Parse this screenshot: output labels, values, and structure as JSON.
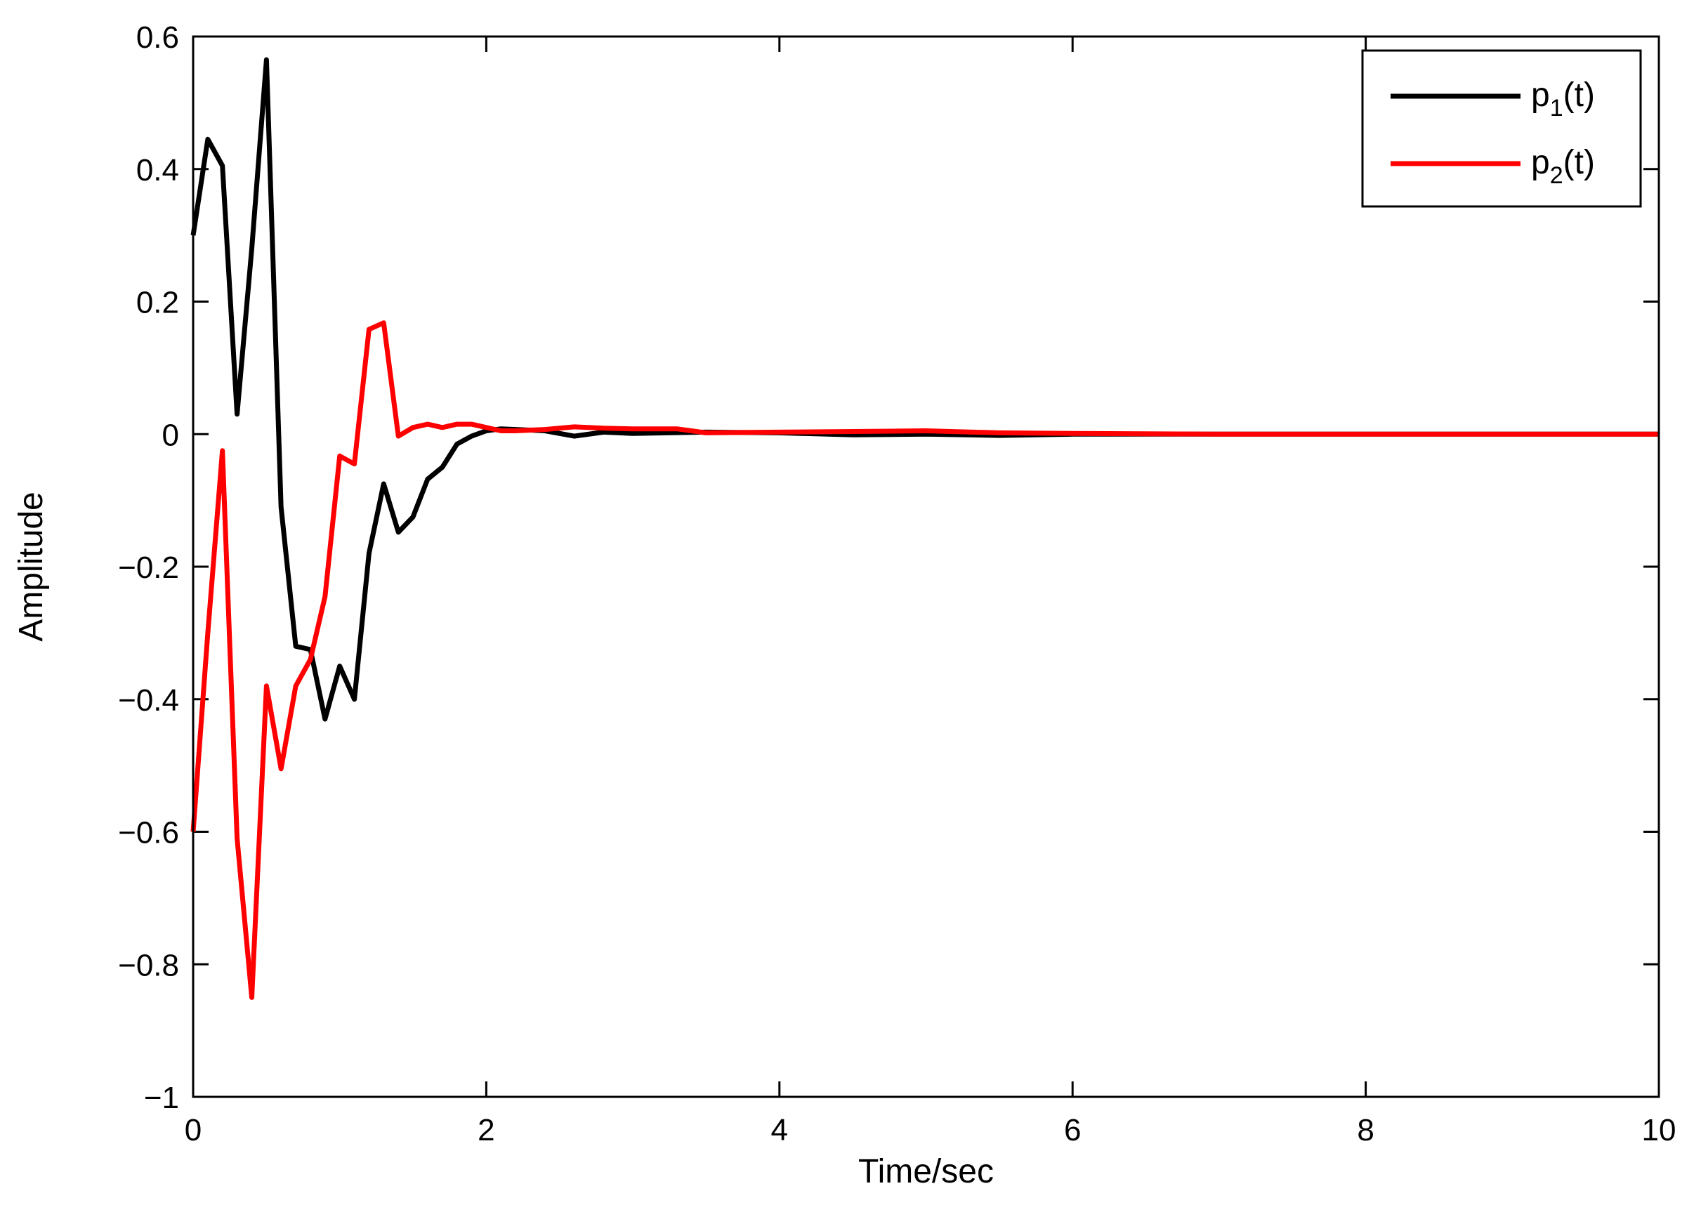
{
  "chart_data": {
    "type": "line",
    "xlabel": "Time/sec",
    "ylabel": "Amplitude",
    "xlim": [
      0,
      10
    ],
    "ylim": [
      -1,
      0.6
    ],
    "xticks": [
      0,
      2,
      4,
      6,
      8,
      10
    ],
    "yticks": [
      -1,
      -0.8,
      -0.6,
      -0.4,
      -0.2,
      0,
      0.2,
      0.4,
      0.6
    ],
    "xtick_labels": [
      "0",
      "2",
      "4",
      "6",
      "8",
      "10"
    ],
    "ytick_labels": [
      "−1",
      "−0.8",
      "−0.6",
      "−0.4",
      "−0.2",
      "0",
      "0.2",
      "0.4",
      "0.6"
    ],
    "grid": false,
    "legend_position": "top-right",
    "series": [
      {
        "name": "p1(t)",
        "label_base": "p",
        "label_sub": "1",
        "label_tail": "(t)",
        "color": "#000000",
        "x": [
          0,
          0.1,
          0.2,
          0.3,
          0.4,
          0.5,
          0.6,
          0.7,
          0.8,
          0.9,
          1.0,
          1.1,
          1.2,
          1.3,
          1.4,
          1.5,
          1.6,
          1.7,
          1.8,
          1.9,
          2.0,
          2.1,
          2.2,
          2.4,
          2.6,
          2.8,
          3.0,
          3.5,
          4.0,
          4.5,
          5.0,
          5.5,
          6.0,
          7.0,
          8.0,
          9.0,
          10.0
        ],
        "y": [
          0.3,
          0.445,
          0.405,
          0.03,
          0.28,
          0.565,
          -0.11,
          -0.32,
          -0.325,
          -0.43,
          -0.35,
          -0.4,
          -0.18,
          -0.075,
          -0.148,
          -0.125,
          -0.068,
          -0.05,
          -0.015,
          -0.003,
          0.005,
          0.008,
          0.007,
          0.005,
          -0.003,
          0.003,
          0.001,
          0.003,
          0.002,
          -0.001,
          0.0,
          -0.002,
          0.0,
          0.0,
          0.0,
          0.0,
          0.0
        ]
      },
      {
        "name": "p2(t)",
        "label_base": "p",
        "label_sub": "2",
        "label_tail": "(t)",
        "color": "#ff0000",
        "x": [
          0,
          0.1,
          0.2,
          0.3,
          0.4,
          0.5,
          0.6,
          0.7,
          0.8,
          0.9,
          1.0,
          1.1,
          1.2,
          1.3,
          1.4,
          1.5,
          1.6,
          1.7,
          1.8,
          1.9,
          2.0,
          2.1,
          2.2,
          2.4,
          2.6,
          2.8,
          3.0,
          3.3,
          3.5,
          4.0,
          4.5,
          5.0,
          5.5,
          6.0,
          7.0,
          8.0,
          9.0,
          10.0
        ],
        "y": [
          -0.6,
          -0.3,
          -0.025,
          -0.61,
          -0.85,
          -0.38,
          -0.505,
          -0.38,
          -0.34,
          -0.245,
          -0.033,
          -0.045,
          0.158,
          0.168,
          -0.003,
          0.01,
          0.015,
          0.01,
          0.015,
          0.015,
          0.01,
          0.005,
          0.005,
          0.007,
          0.011,
          0.009,
          0.008,
          0.008,
          0.002,
          0.003,
          0.004,
          0.005,
          0.002,
          0.001,
          0.0,
          0.0,
          0.0,
          0.0
        ]
      }
    ]
  }
}
